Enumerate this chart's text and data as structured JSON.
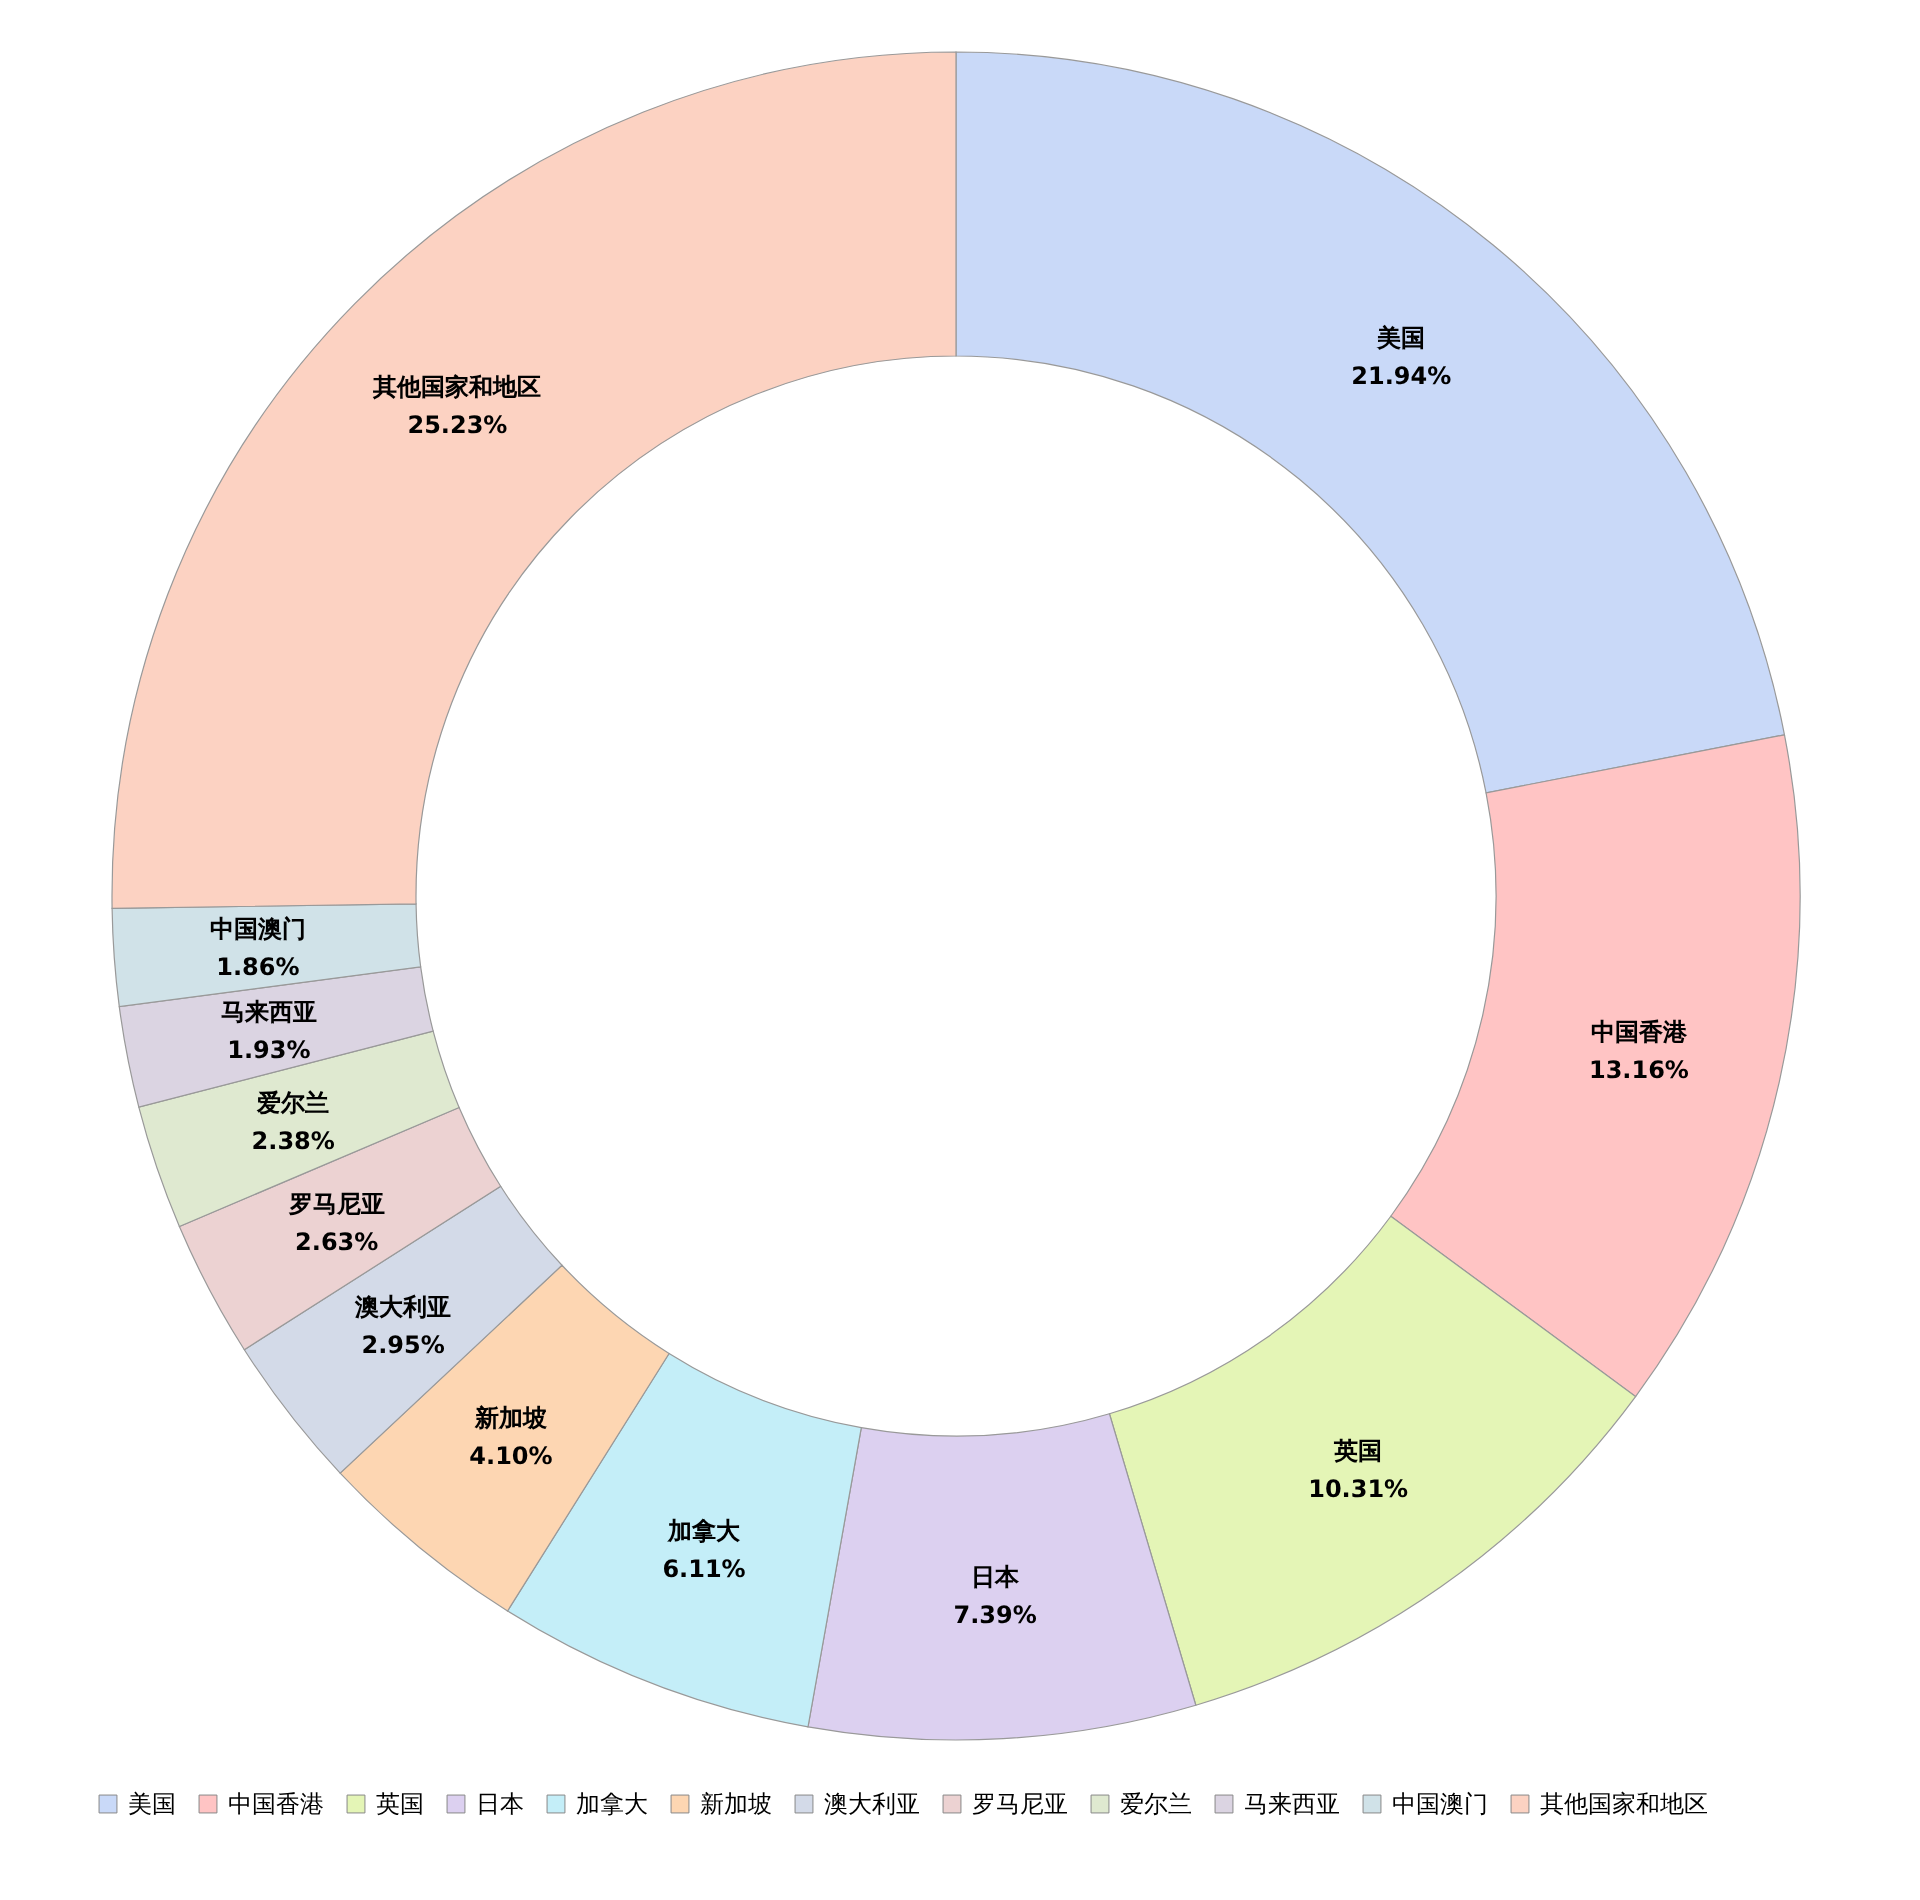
{
  "chart_data": {
    "type": "donut",
    "categories": [
      "美国",
      "中国香港",
      "英国",
      "日本",
      "加拿大",
      "新加坡",
      "澳大利亚",
      "罗马尼亚",
      "爱尔兰",
      "马来西亚",
      "中国澳门",
      "其他国家和地区"
    ],
    "values": [
      21.94,
      13.16,
      10.31,
      7.39,
      6.11,
      4.1,
      2.95,
      2.63,
      2.38,
      1.93,
      1.86,
      25.23
    ],
    "value_labels": [
      "21.94%",
      "13.16%",
      "10.31%",
      "7.39%",
      "6.11%",
      "4.10%",
      "2.95%",
      "2.63%",
      "2.38%",
      "1.93%",
      "1.86%",
      "25.23%"
    ],
    "colors": [
      "#c9d9f8",
      "#ffc4c4",
      "#e4f5b6",
      "#dcd0f0",
      "#c4eef8",
      "#fdd6b2",
      "#d3dae8",
      "#ecd2d2",
      "#dfe9d0",
      "#dbd4e2",
      "#d0e2e8",
      "#fcd2c2"
    ],
    "legend": "bottom"
  }
}
